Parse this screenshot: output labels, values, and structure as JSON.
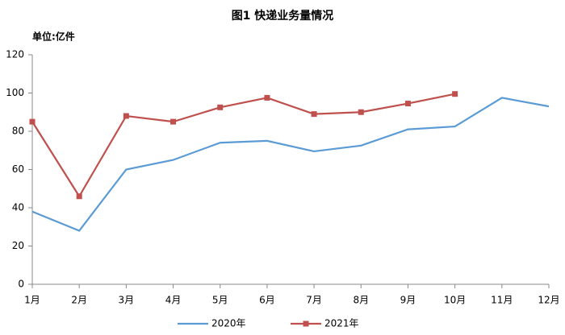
{
  "chart_data": {
    "type": "line",
    "title": "图1    快递业务量情况",
    "y_unit": "单位:亿件",
    "categories": [
      "1月",
      "2月",
      "3月",
      "4月",
      "5月",
      "6月",
      "7月",
      "8月",
      "9月",
      "10月",
      "11月",
      "12月"
    ],
    "series": [
      {
        "name": "2020年",
        "color": "#5b9bd5",
        "marker": false,
        "values": [
          38,
          28,
          60,
          65,
          74,
          75,
          69.5,
          72.5,
          81,
          82.5,
          97.5,
          93
        ]
      },
      {
        "name": "2021年",
        "color": "#c0504d",
        "marker": true,
        "values": [
          85,
          46,
          88,
          85,
          92.5,
          97.5,
          89,
          90,
          94.5,
          99.5,
          null,
          null
        ]
      }
    ],
    "ylim": [
      0,
      120
    ],
    "yticks": [
      0,
      20,
      40,
      60,
      80,
      100,
      120
    ],
    "grid": false,
    "legend": "bottom"
  }
}
